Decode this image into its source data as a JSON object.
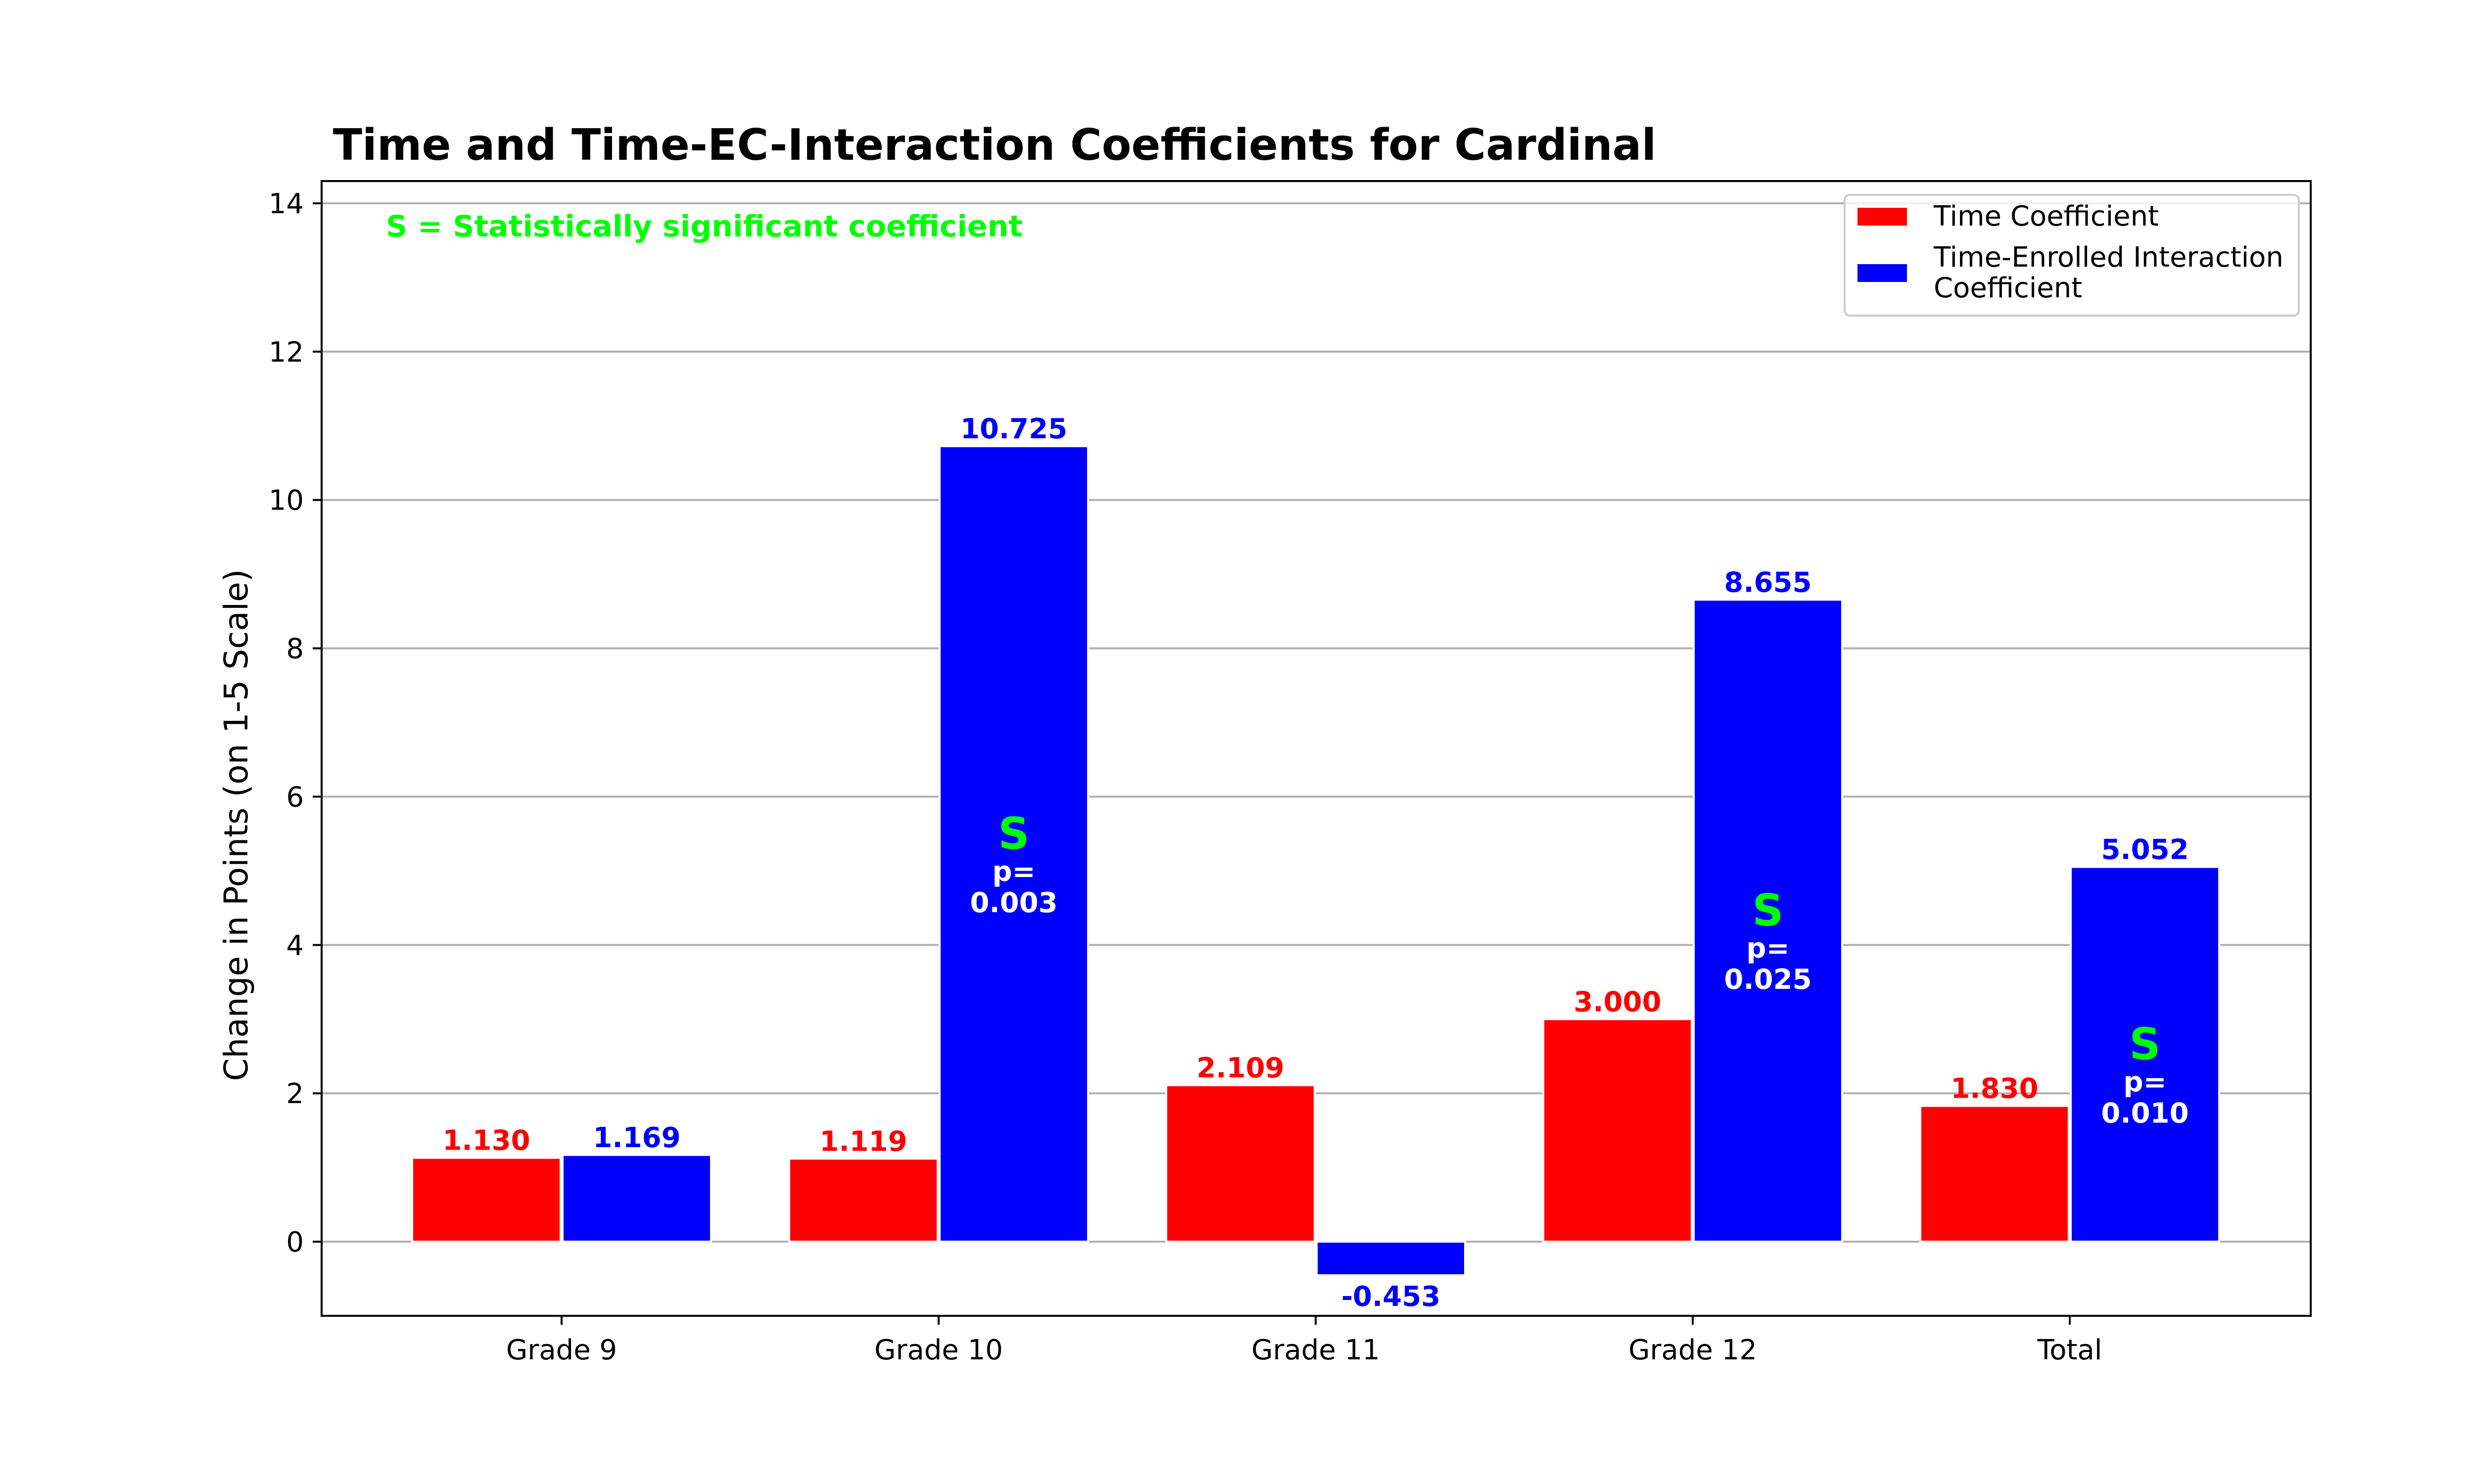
{
  "colors": {
    "time": "#ff0000",
    "interaction": "#0000ff",
    "significant": "#00ff00",
    "grid": "#b0b0b0"
  },
  "chart_data": {
    "type": "bar",
    "title": "Time and Time-EC-Interaction Coefficients for Cardinal",
    "xlabel": "",
    "ylabel": "Change in Points (on 1-5 Scale)",
    "ylim": [
      -1,
      14.3
    ],
    "yticks": [
      0,
      2,
      4,
      6,
      8,
      10,
      12,
      14
    ],
    "grid": "horizontal",
    "legend_position": "top-right",
    "note": "S = Statistically significant coefficient",
    "categories": [
      "Grade 9",
      "Grade 10",
      "Grade 11",
      "Grade 12",
      "Total"
    ],
    "series": [
      {
        "name": "Time Coefficient",
        "values": [
          1.13,
          1.119,
          2.109,
          3.0,
          1.83
        ],
        "labels": [
          "1.130",
          "1.119",
          "2.109",
          "3.000",
          "1.830"
        ]
      },
      {
        "name": "Time-Enrolled Interaction Coefficient",
        "legend_lines": [
          "Time-Enrolled Interaction",
          "Coefficient"
        ],
        "values": [
          1.169,
          10.725,
          -0.453,
          8.655,
          5.052
        ],
        "labels": [
          "1.169",
          "10.725",
          "-0.453",
          "8.655",
          "5.052"
        ]
      }
    ],
    "significance": [
      {
        "category": "Grade 10",
        "series": 1,
        "mark": "S",
        "p_label": "p=",
        "p_value": "0.003"
      },
      {
        "category": "Grade 12",
        "series": 1,
        "mark": "S",
        "p_label": "p=",
        "p_value": "0.025"
      },
      {
        "category": "Total",
        "series": 1,
        "mark": "S",
        "p_label": "p=",
        "p_value": "0.010"
      }
    ]
  }
}
